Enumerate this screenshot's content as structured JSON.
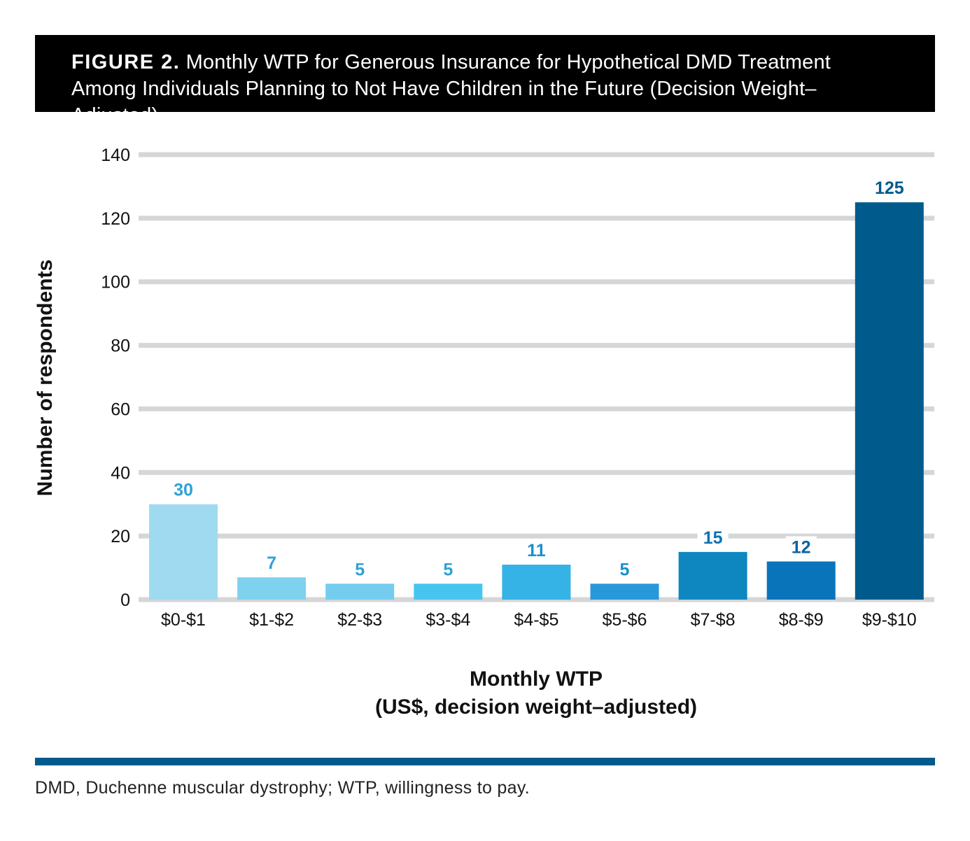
{
  "figure": {
    "label": "FIGURE 2.",
    "title": "Monthly WTP for Generous Insurance for Hypothetical DMD Treatment Among Individuals Planning to Not Have Children in the Future (Decision Weight–Adjusted)"
  },
  "chart_data": {
    "type": "bar",
    "title": "Monthly WTP for Generous Insurance for Hypothetical DMD Treatment Among Individuals Planning to Not Have Children in the Future (Decision Weight–Adjusted)",
    "categories": [
      "$0-$1",
      "$1-$2",
      "$2-$3",
      "$3-$4",
      "$4-$5",
      "$5-$6",
      "$7-$8",
      "$8-$9",
      "$9-$10"
    ],
    "values": [
      30,
      7,
      5,
      5,
      11,
      5,
      15,
      12,
      125
    ],
    "bar_colors": [
      "#9fdaf0",
      "#7fd2ee",
      "#74cdee",
      "#47c5f0",
      "#35b2e6",
      "#2898d8",
      "#0e87c0",
      "#0a74bb",
      "#005a8c"
    ],
    "label_colors": [
      "#2fa1d5",
      "#2fa1d5",
      "#2fa1d5",
      "#2fa1d5",
      "#1a8fce",
      "#1a8fce",
      "#0e72b3",
      "#0a63a3",
      "#005a8c"
    ],
    "xlabel_line1": "Monthly WTP",
    "xlabel_line2": "(US$, decision weight–adjusted)",
    "ylabel": "Number of respondents",
    "ylim": [
      0,
      140
    ],
    "yticks": [
      0,
      20,
      40,
      60,
      80,
      100,
      120,
      140
    ],
    "grid": true,
    "grid_color": "#d4d6d8"
  },
  "footnote": "DMD, Duchenne muscular dystrophy; WTP, willingness to pay.",
  "accent_color": "#005b8c"
}
